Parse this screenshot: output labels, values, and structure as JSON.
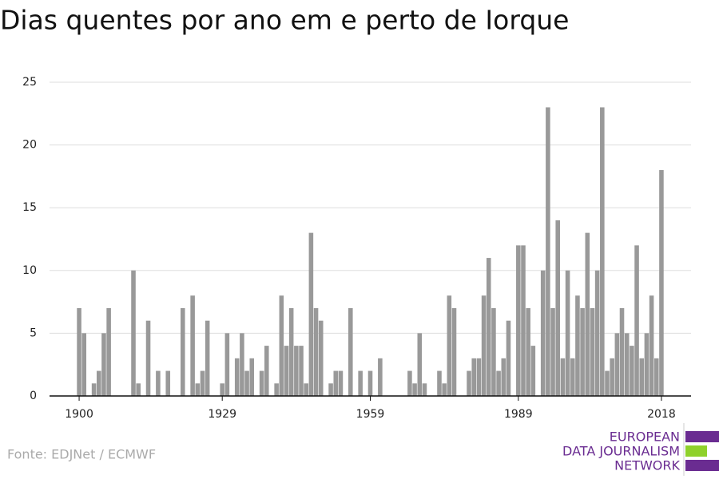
{
  "chart_data": {
    "type": "bar",
    "title": "Dias quentes por ano em e perto de Iorque",
    "source": "Fonte: EDJNet / ECMWF",
    "logo": [
      "EUROPEAN",
      "DATA JOURNALISM",
      "NETWORK"
    ],
    "color": "#999999",
    "x": [
      1900,
      1901,
      1902,
      1903,
      1904,
      1905,
      1906,
      1907,
      1908,
      1909,
      1910,
      1911,
      1912,
      1913,
      1914,
      1915,
      1916,
      1917,
      1918,
      1919,
      1920,
      1921,
      1922,
      1923,
      1924,
      1925,
      1926,
      1927,
      1928,
      1929,
      1930,
      1931,
      1932,
      1933,
      1934,
      1935,
      1936,
      1937,
      1938,
      1939,
      1940,
      1941,
      1942,
      1943,
      1944,
      1945,
      1946,
      1947,
      1948,
      1949,
      1950,
      1951,
      1952,
      1953,
      1954,
      1955,
      1956,
      1957,
      1958,
      1959,
      1960,
      1961,
      1962,
      1963,
      1964,
      1965,
      1966,
      1967,
      1968,
      1969,
      1970,
      1971,
      1972,
      1973,
      1974,
      1975,
      1976,
      1977,
      1978,
      1979,
      1980,
      1981,
      1982,
      1983,
      1984,
      1985,
      1986,
      1987,
      1988,
      1989,
      1990,
      1991,
      1992,
      1993,
      1994,
      1995,
      1996,
      1997,
      1998,
      1999,
      2000,
      2001,
      2002,
      2003,
      2004,
      2005,
      2006,
      2007,
      2008,
      2009,
      2010,
      2011,
      2012,
      2013,
      2014,
      2015,
      2016,
      2017,
      2018
    ],
    "values": [
      7,
      5,
      0,
      1,
      2,
      5,
      7,
      0,
      0,
      0,
      0,
      10,
      1,
      0,
      6,
      0,
      2,
      0,
      2,
      0,
      0,
      7,
      0,
      8,
      1,
      2,
      6,
      0,
      0,
      1,
      5,
      0,
      3,
      5,
      2,
      3,
      0,
      2,
      4,
      0,
      1,
      8,
      4,
      7,
      4,
      4,
      1,
      13,
      7,
      6,
      0,
      1,
      2,
      2,
      0,
      7,
      0,
      2,
      0,
      2,
      0,
      3,
      0,
      0,
      0,
      0,
      0,
      2,
      1,
      5,
      1,
      0,
      0,
      2,
      1,
      8,
      7,
      0,
      0,
      2,
      3,
      3,
      8,
      11,
      7,
      2,
      3,
      6,
      0,
      12,
      12,
      7,
      4,
      0,
      10,
      23,
      7,
      14,
      3,
      10,
      3,
      8,
      7,
      13,
      7,
      10,
      23,
      2,
      3,
      5,
      7,
      5,
      4,
      12,
      3,
      5,
      8,
      3,
      18
    ],
    "xlim": [
      1894,
      2024
    ],
    "xticks": [
      1900,
      1929,
      1959,
      1989,
      2018
    ],
    "ylim": [
      0,
      25
    ],
    "yticks": [
      0,
      5,
      10,
      15,
      20,
      25
    ],
    "grid": true
  }
}
